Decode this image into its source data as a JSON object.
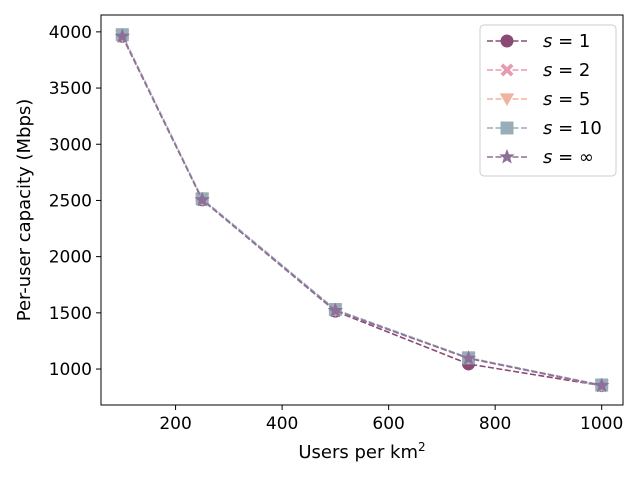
{
  "chart_data": {
    "type": "line",
    "title": "",
    "xlabel": "Users per km",
    "xlabel_sup": "2",
    "ylabel": "Per-user capacity (Mbps)",
    "xlim": [
      60,
      1040
    ],
    "ylim": [
      680,
      4150
    ],
    "xticks": [
      200,
      400,
      600,
      800,
      1000
    ],
    "yticks": [
      1000,
      1500,
      2000,
      2500,
      3000,
      3500,
      4000
    ],
    "x": [
      100,
      250,
      500,
      750,
      1000
    ],
    "legend_position": "top-right",
    "grid": false,
    "series": [
      {
        "name": "s = 1",
        "label_main": "s",
        "label_value": "1",
        "color": "#8a4a73",
        "marker": "circle",
        "values": [
          3960,
          2505,
          1515,
          1045,
          852
        ]
      },
      {
        "name": "s = 2",
        "label_main": "s",
        "label_value": "2",
        "color": "#e79bb0",
        "marker": "x",
        "values": [
          3960,
          2508,
          1520,
          1095,
          850
        ]
      },
      {
        "name": "s = 5",
        "label_main": "s",
        "label_value": "5",
        "color": "#efb39e",
        "marker": "triangle-down",
        "values": [
          3965,
          2510,
          1525,
          1098,
          855
        ]
      },
      {
        "name": "s = 10",
        "label_main": "s",
        "label_value": "10",
        "color": "#98adba",
        "marker": "square",
        "values": [
          3975,
          2515,
          1530,
          1100,
          858
        ]
      },
      {
        "name": "s = ∞",
        "label_main": "s",
        "label_value": "∞",
        "color": "#8e6f97",
        "marker": "star",
        "values": [
          3960,
          2505,
          1520,
          1095,
          853
        ]
      }
    ]
  }
}
